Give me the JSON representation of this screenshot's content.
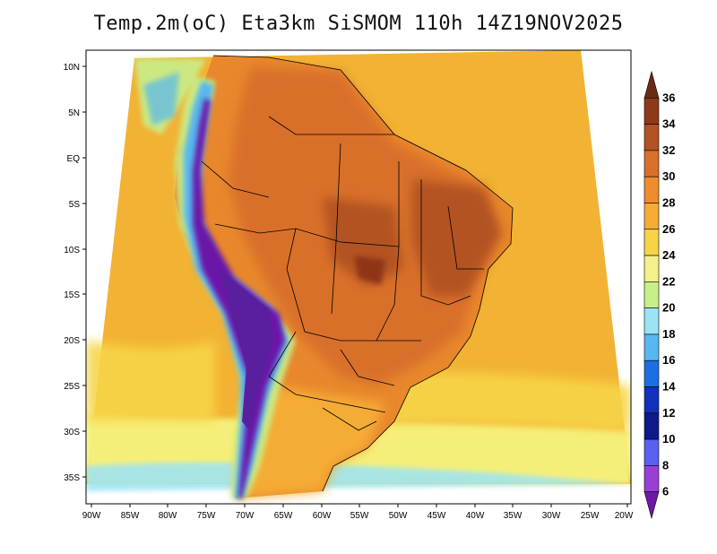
{
  "title": "Temp.2m(oC) Eta3km SiSMOM 110h 14Z19NOV2025",
  "map": {
    "lat_labels": [
      "10N",
      "5N",
      "EQ",
      "5S",
      "10S",
      "15S",
      "20S",
      "25S",
      "30S",
      "35S"
    ],
    "lon_labels": [
      "90W",
      "85W",
      "80W",
      "75W",
      "70W",
      "65W",
      "60W",
      "55W",
      "50W",
      "45W",
      "40W",
      "35W",
      "30W",
      "25W",
      "20W"
    ],
    "colors": {
      "ocean_warm": "#f2b233",
      "ocean_mid": "#f7d548",
      "ocean_cool": "#f5ef7a",
      "land_hot": "#e8872c",
      "land_very_hot": "#c8521c",
      "land_extreme": "#8e3514",
      "andes_cold": "#5a1f9e",
      "coast_cool": "#7fd0f2"
    }
  },
  "colorbar": {
    "labels": [
      "36",
      "34",
      "32",
      "30",
      "28",
      "26",
      "24",
      "22",
      "20",
      "18",
      "16",
      "14",
      "12",
      "10",
      "8",
      "6"
    ],
    "colors": [
      "#6b2a12",
      "#8e3a1a",
      "#b35222",
      "#d9702a",
      "#ee8c2e",
      "#f5ac35",
      "#f7d34a",
      "#f5f08a",
      "#c8f08a",
      "#9be4f5",
      "#57b7f0",
      "#1c6fe0",
      "#1230b8",
      "#0c1a8c",
      "#5b5ff0",
      "#9a3fd6",
      "#6c19a8"
    ]
  }
}
